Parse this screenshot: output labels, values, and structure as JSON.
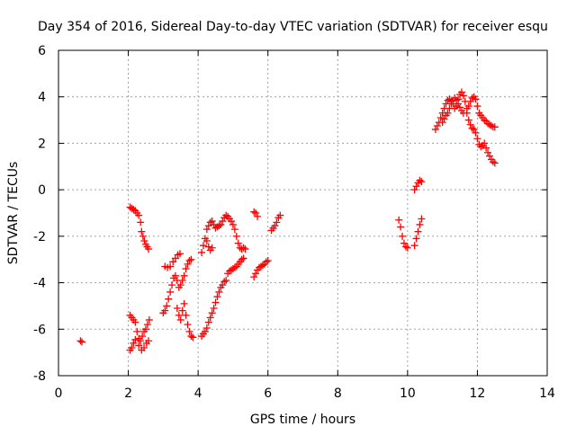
{
  "chart_data": {
    "type": "scatter",
    "title": "Day 354 of 2016, Sidereal Day-to-day VTEC variation (SDTVAR) for receiver esqu",
    "xlabel": "GPS time / hours",
    "ylabel": "SDTVAR / TECUs",
    "xlim": [
      0,
      14
    ],
    "ylim": [
      -8,
      6
    ],
    "xticks": [
      "0",
      "2",
      "4",
      "6",
      "8",
      "10",
      "12",
      "14"
    ],
    "yticks": [
      "-8",
      "-6",
      "-4",
      "-2",
      "0",
      "2",
      "4",
      "6"
    ],
    "grid": true,
    "legend": "none",
    "marker": "+",
    "color": "#ff0000",
    "series": [
      {
        "x": [
          0.63,
          0.67
        ],
        "y": [
          -6.5,
          -6.55
        ]
      },
      {
        "x": [
          2.05,
          2.1,
          2.15,
          2.2,
          2.25,
          2.3,
          2.35,
          2.38,
          2.42,
          2.46,
          2.5,
          2.54,
          2.58
        ],
        "y": [
          -0.75,
          -0.8,
          -0.85,
          -0.9,
          -1.0,
          -1.1,
          -1.4,
          -1.8,
          -2.0,
          -2.2,
          -2.35,
          -2.45,
          -2.55
        ]
      },
      {
        "x": [
          2.05,
          2.1,
          2.15,
          2.2,
          2.25,
          2.3,
          2.35,
          2.4,
          2.45,
          2.5,
          2.55,
          2.6
        ],
        "y": [
          -5.4,
          -5.5,
          -5.6,
          -5.7,
          -6.1,
          -6.4,
          -6.5,
          -6.3,
          -6.1,
          -6.0,
          -5.8,
          -5.6
        ]
      },
      {
        "x": [
          2.05,
          2.1,
          2.15,
          2.2,
          2.3,
          2.38,
          2.45,
          2.52,
          2.58
        ],
        "y": [
          -6.9,
          -6.8,
          -6.6,
          -6.45,
          -6.7,
          -6.9,
          -6.8,
          -6.6,
          -6.5
        ]
      },
      {
        "x": [
          3.0,
          3.05,
          3.1,
          3.15,
          3.2,
          3.25,
          3.3,
          3.35,
          3.4,
          3.45,
          3.5,
          3.55,
          3.6,
          3.65,
          3.7,
          3.75,
          3.8
        ],
        "y": [
          -5.3,
          -5.2,
          -5.0,
          -4.7,
          -4.4,
          -4.1,
          -3.8,
          -3.7,
          -3.9,
          -4.2,
          -4.1,
          -3.9,
          -3.7,
          -3.4,
          -3.2,
          -3.05,
          -3.0
        ]
      },
      {
        "x": [
          3.05,
          3.12,
          3.2,
          3.28,
          3.35,
          3.42,
          3.48
        ],
        "y": [
          -3.3,
          -3.35,
          -3.3,
          -3.1,
          -2.95,
          -2.8,
          -2.75
        ]
      },
      {
        "x": [
          3.4,
          3.45,
          3.5,
          3.55,
          3.6,
          3.65,
          3.7,
          3.75,
          3.8,
          3.85
        ],
        "y": [
          -5.1,
          -5.4,
          -5.6,
          -5.2,
          -4.9,
          -5.4,
          -5.8,
          -6.1,
          -6.3,
          -6.35
        ]
      },
      {
        "x": [
          4.1,
          4.15,
          4.2,
          4.25,
          4.3,
          4.35,
          4.4,
          4.45,
          4.5,
          4.55,
          4.6,
          4.65,
          4.7,
          4.75,
          4.8
        ],
        "y": [
          -6.3,
          -6.2,
          -6.1,
          -5.95,
          -5.7,
          -5.5,
          -5.3,
          -5.1,
          -4.85,
          -4.6,
          -4.4,
          -4.2,
          -4.1,
          -3.95,
          -3.9
        ]
      },
      {
        "x": [
          4.85,
          4.9,
          4.95,
          5.0,
          5.05,
          5.1,
          5.15,
          5.2,
          5.25,
          5.3
        ],
        "y": [
          -3.6,
          -3.5,
          -3.45,
          -3.4,
          -3.35,
          -3.3,
          -3.2,
          -3.1,
          -3.0,
          -2.95
        ]
      },
      {
        "x": [
          4.1,
          4.15,
          4.2,
          4.25,
          4.3,
          4.35,
          4.4
        ],
        "y": [
          -2.7,
          -2.4,
          -2.1,
          -2.2,
          -2.45,
          -2.6,
          -2.5
        ]
      },
      {
        "x": [
          4.25,
          4.3,
          4.35,
          4.4,
          4.45,
          4.5,
          4.55,
          4.6,
          4.65,
          4.7,
          4.75,
          4.8,
          4.85,
          4.9,
          4.95,
          5.0,
          5.05,
          5.1,
          5.15,
          5.2,
          5.25,
          5.3,
          5.35
        ],
        "y": [
          -1.7,
          -1.55,
          -1.4,
          -1.35,
          -1.5,
          -1.65,
          -1.6,
          -1.55,
          -1.5,
          -1.35,
          -1.2,
          -1.1,
          -1.15,
          -1.25,
          -1.35,
          -1.5,
          -1.7,
          -2.0,
          -2.3,
          -2.5,
          -2.55,
          -2.5,
          -2.55
        ]
      },
      {
        "x": [
          5.6,
          5.65,
          5.7,
          5.75,
          5.8,
          5.85,
          5.9,
          5.95,
          6.0
        ],
        "y": [
          -3.75,
          -3.6,
          -3.45,
          -3.35,
          -3.3,
          -3.25,
          -3.2,
          -3.1,
          -3.05
        ]
      },
      {
        "x": [
          5.6,
          5.65,
          5.7
        ],
        "y": [
          -0.95,
          -1.0,
          -1.15
        ]
      },
      {
        "x": [
          6.1,
          6.15,
          6.2,
          6.25,
          6.3,
          6.35
        ],
        "y": [
          -1.75,
          -1.65,
          -1.55,
          -1.4,
          -1.2,
          -1.1
        ]
      },
      {
        "x": [
          9.75,
          9.8,
          9.85,
          9.9,
          9.95,
          10.0
        ],
        "y": [
          -1.3,
          -1.6,
          -2.0,
          -2.3,
          -2.45,
          -2.5
        ]
      },
      {
        "x": [
          10.2,
          10.25,
          10.3,
          10.35,
          10.4
        ],
        "y": [
          -2.4,
          -2.1,
          -1.8,
          -1.5,
          -1.25
        ]
      },
      {
        "x": [
          10.2,
          10.25,
          10.3,
          10.35,
          10.4
        ],
        "y": [
          0.0,
          0.15,
          0.3,
          0.4,
          0.35
        ]
      },
      {
        "x": [
          10.8,
          10.85,
          10.9,
          10.95,
          11.0,
          11.05,
          11.1,
          11.15,
          11.2,
          11.25,
          11.3,
          11.35,
          11.4,
          11.45,
          11.5,
          11.55,
          11.6,
          11.65,
          11.7,
          11.75,
          11.8,
          11.85,
          11.9,
          11.95,
          12.0,
          12.05,
          12.1,
          12.15,
          12.2,
          12.25,
          12.3,
          12.35,
          12.4,
          12.45,
          12.5
        ],
        "y": [
          2.6,
          2.75,
          2.9,
          3.1,
          3.3,
          3.5,
          3.7,
          3.85,
          3.9,
          3.8,
          3.7,
          3.5,
          3.6,
          3.9,
          4.1,
          4.2,
          4.05,
          3.8,
          3.5,
          3.6,
          3.8,
          3.95,
          4.0,
          3.9,
          3.6,
          3.3,
          3.2,
          3.1,
          3.0,
          2.95,
          2.85,
          2.8,
          2.75,
          2.7,
          2.7
        ]
      },
      {
        "x": [
          11.0,
          11.05,
          11.1,
          11.15,
          11.2,
          11.25,
          11.3,
          11.35,
          11.4,
          11.45,
          11.5,
          11.55,
          11.6
        ],
        "y": [
          2.9,
          3.05,
          3.2,
          3.3,
          3.5,
          3.7,
          3.85,
          3.95,
          3.85,
          3.7,
          3.55,
          3.4,
          3.3
        ]
      },
      {
        "x": [
          11.7,
          11.75,
          11.8,
          11.85,
          11.9,
          11.95,
          12.0,
          12.05,
          12.1,
          12.15,
          12.2,
          12.25,
          12.3,
          12.35,
          12.4,
          12.45,
          12.5
        ],
        "y": [
          3.3,
          3.0,
          2.8,
          2.65,
          2.6,
          2.45,
          2.2,
          1.95,
          1.85,
          1.9,
          2.0,
          1.8,
          1.6,
          1.45,
          1.3,
          1.2,
          1.15
        ]
      }
    ]
  }
}
